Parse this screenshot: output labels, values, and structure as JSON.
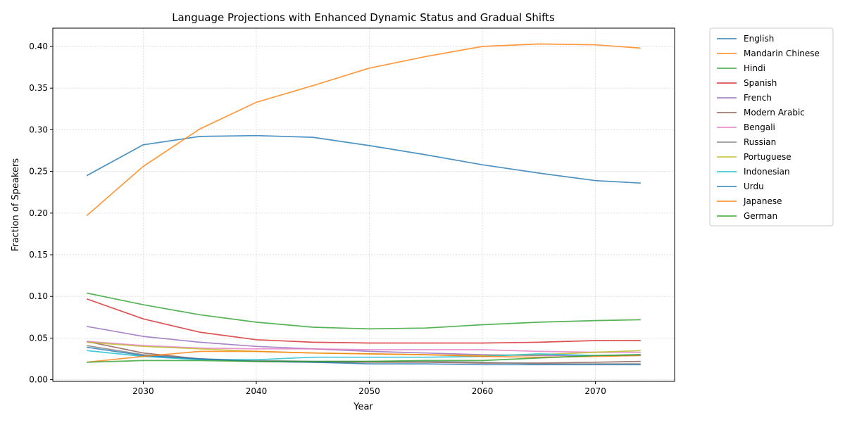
{
  "chart_data": {
    "type": "line",
    "title": "Language Projections with Enhanced Dynamic Status and Gradual Shifts",
    "xlabel": "Year",
    "ylabel": "Fraction of Speakers",
    "xlim": [
      2022,
      2077
    ],
    "ylim": [
      -0.002,
      0.422
    ],
    "x_ticks": [
      2030,
      2040,
      2050,
      2060,
      2070
    ],
    "y_ticks": [
      "0.00",
      "0.05",
      "0.10",
      "0.15",
      "0.20",
      "0.25",
      "0.30",
      "0.35",
      "0.40"
    ],
    "grid": true,
    "legend_position": "outside-right-top",
    "x": [
      2025,
      2030,
      2035,
      2040,
      2045,
      2050,
      2055,
      2060,
      2065,
      2070,
      2074
    ],
    "series": [
      {
        "name": "English",
        "color": "#1f77b4",
        "values": [
          0.245,
          0.282,
          0.292,
          0.293,
          0.291,
          0.281,
          0.27,
          0.258,
          0.248,
          0.239,
          0.236
        ]
      },
      {
        "name": "Mandarin Chinese",
        "color": "#ff7f0e",
        "values": [
          0.197,
          0.256,
          0.301,
          0.333,
          0.353,
          0.374,
          0.388,
          0.4,
          0.403,
          0.402,
          0.398
        ]
      },
      {
        "name": "Hindi",
        "color": "#2ca02c",
        "values": [
          0.104,
          0.09,
          0.078,
          0.069,
          0.063,
          0.061,
          0.062,
          0.066,
          0.069,
          0.071,
          0.072
        ]
      },
      {
        "name": "Spanish",
        "color": "#d62728",
        "values": [
          0.097,
          0.073,
          0.057,
          0.048,
          0.045,
          0.044,
          0.044,
          0.044,
          0.045,
          0.047,
          0.047
        ]
      },
      {
        "name": "French",
        "color": "#9467bd",
        "values": [
          0.064,
          0.052,
          0.045,
          0.04,
          0.037,
          0.034,
          0.032,
          0.03,
          0.029,
          0.029,
          0.029
        ]
      },
      {
        "name": "Modern Arabic",
        "color": "#8c564b",
        "values": [
          0.046,
          0.032,
          0.025,
          0.022,
          0.021,
          0.021,
          0.021,
          0.02,
          0.02,
          0.021,
          0.022
        ]
      },
      {
        "name": "Bengali",
        "color": "#e377c2",
        "values": [
          0.046,
          0.041,
          0.038,
          0.037,
          0.037,
          0.036,
          0.036,
          0.036,
          0.034,
          0.033,
          0.033
        ]
      },
      {
        "name": "Russian",
        "color": "#7f7f7f",
        "values": [
          0.041,
          0.03,
          0.025,
          0.023,
          0.022,
          0.022,
          0.022,
          0.021,
          0.019,
          0.019,
          0.019
        ]
      },
      {
        "name": "Portuguese",
        "color": "#bcbd22",
        "values": [
          0.045,
          0.04,
          0.037,
          0.034,
          0.032,
          0.031,
          0.03,
          0.029,
          0.03,
          0.033,
          0.035
        ]
      },
      {
        "name": "Indonesian",
        "color": "#17becf",
        "values": [
          0.035,
          0.028,
          0.024,
          0.024,
          0.027,
          0.027,
          0.027,
          0.028,
          0.031,
          0.029,
          0.03
        ]
      },
      {
        "name": "Urdu",
        "color": "#1f77b4",
        "values": [
          0.039,
          0.029,
          0.025,
          0.022,
          0.021,
          0.019,
          0.019,
          0.018,
          0.018,
          0.018,
          0.018
        ]
      },
      {
        "name": "Japanese",
        "color": "#ff7f0e",
        "values": [
          0.021,
          0.028,
          0.034,
          0.034,
          0.032,
          0.031,
          0.03,
          0.028,
          0.027,
          0.028,
          0.029
        ]
      },
      {
        "name": "German",
        "color": "#2ca02c",
        "values": [
          0.021,
          0.023,
          0.023,
          0.022,
          0.022,
          0.022,
          0.023,
          0.023,
          0.026,
          0.029,
          0.03
        ]
      }
    ]
  }
}
